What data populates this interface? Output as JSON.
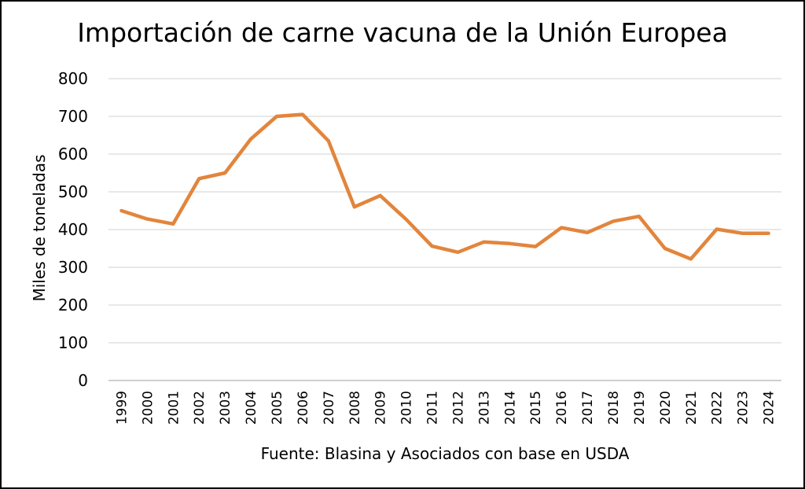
{
  "chart_data": {
    "type": "line",
    "title": "Importación de carne vacuna de la Unión Europea",
    "xlabel": "Fuente: Blasina y Asociados con base en USDA",
    "ylabel": "Miles de toneladas",
    "ylim": [
      0,
      800
    ],
    "yticks": [
      0,
      100,
      200,
      300,
      400,
      500,
      600,
      700,
      800
    ],
    "grid": true,
    "legend": "none",
    "color": "#E2853C",
    "categories": [
      "1999",
      "2000",
      "2001",
      "2002",
      "2003",
      "2004",
      "2005",
      "2006",
      "2007",
      "2008",
      "2009",
      "2010",
      "2011",
      "2012",
      "2013",
      "2014",
      "2015",
      "2016",
      "2017",
      "2018",
      "2019",
      "2020",
      "2021",
      "2022",
      "2023",
      "2024"
    ],
    "series": [
      {
        "values": [
          450,
          428,
          415,
          535,
          550,
          640,
          700,
          705,
          635,
          460,
          490,
          427,
          356,
          340,
          367,
          363,
          355,
          405,
          392,
          422,
          435,
          350,
          322,
          401,
          390,
          390
        ]
      }
    ]
  }
}
